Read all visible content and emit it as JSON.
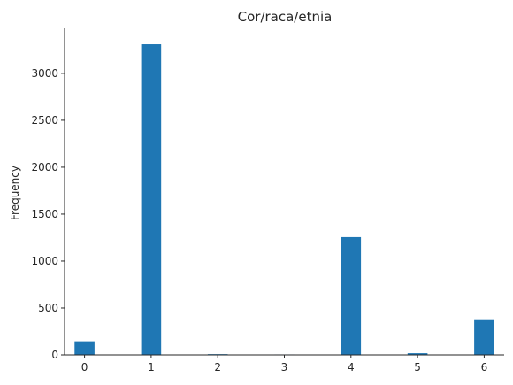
{
  "chart_data": {
    "type": "bar",
    "title": "Cor/raca/etnia",
    "xlabel": "",
    "ylabel": "Frequency",
    "x_ticks": [
      0,
      1,
      2,
      3,
      4,
      5,
      6
    ],
    "x_tick_labels": [
      "0",
      "1",
      "2",
      "3",
      "4",
      "5",
      "6"
    ],
    "y_ticks": [
      0,
      500,
      1000,
      1500,
      2000,
      2500,
      3000
    ],
    "y_tick_labels": [
      "0",
      "500",
      "1000",
      "1500",
      "2000",
      "2500",
      "3000"
    ],
    "xlim": [
      -0.3,
      6.3
    ],
    "ylim": [
      0,
      3480
    ],
    "bars": [
      {
        "x": 0,
        "value": 145
      },
      {
        "x": 1,
        "value": 3310
      },
      {
        "x": 2,
        "value": 8
      },
      {
        "x": 3,
        "value": 5
      },
      {
        "x": 4,
        "value": 1255
      },
      {
        "x": 5,
        "value": 18
      },
      {
        "x": 6,
        "value": 380
      }
    ],
    "bar_width": 0.3,
    "bar_color": "#1f77b4",
    "grid": false,
    "legend": "none"
  }
}
